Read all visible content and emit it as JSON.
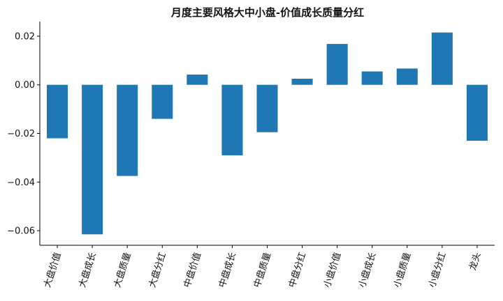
{
  "chart_data": {
    "type": "bar",
    "title": "月度主要风格大中小盘-价值成长质量分红",
    "xlabel": "",
    "ylabel": "",
    "categories": [
      "大盘价值",
      "大盘成长",
      "大盘质量",
      "大盘分红",
      "中盘价值",
      "中盘成长",
      "中盘质量",
      "中盘分红",
      "小盘价值",
      "小盘成长",
      "小盘质量",
      "小盘分红",
      "龙头"
    ],
    "values": [
      -0.022,
      -0.0615,
      -0.0375,
      -0.014,
      0.0042,
      -0.029,
      -0.0195,
      0.0025,
      0.0168,
      0.0055,
      0.0067,
      0.0215,
      -0.023
    ],
    "ylim": [
      -0.066,
      0.026
    ],
    "yticks": [
      0.02,
      0.0,
      -0.02,
      -0.04,
      -0.06
    ],
    "ytick_labels": [
      "0.02",
      "0.00",
      "−0.02",
      "−0.04",
      "−0.06"
    ],
    "bar_color": "#1f77b4",
    "grid": false,
    "legend": "none"
  }
}
